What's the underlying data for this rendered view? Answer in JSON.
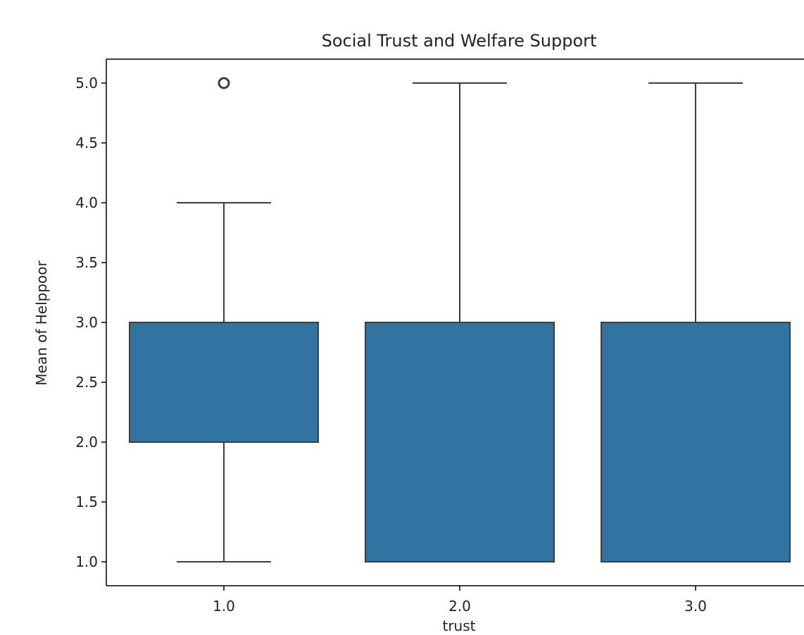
{
  "chart_data": {
    "type": "box",
    "title": "Social Trust and Welfare Support",
    "xlabel": "trust",
    "ylabel": "Mean of Helppoor",
    "categories": [
      "1.0",
      "2.0",
      "3.0"
    ],
    "yticks": [
      "1.0",
      "1.5",
      "2.0",
      "2.5",
      "3.0",
      "3.5",
      "4.0",
      "4.5",
      "5.0"
    ],
    "ylim": [
      0.8,
      5.2
    ],
    "grid": false,
    "legend": "none",
    "box_color": "#3274a1",
    "line_color": "#3d3d3d",
    "boxes": [
      {
        "category": "1.0",
        "whisker_low": 1.0,
        "q1": 2.0,
        "median": 3.0,
        "q3": 3.0,
        "whisker_high": 4.0,
        "outliers": [
          5.0
        ]
      },
      {
        "category": "2.0",
        "whisker_low": 1.0,
        "q1": 1.0,
        "median": 3.0,
        "q3": 3.0,
        "whisker_high": 5.0,
        "outliers": []
      },
      {
        "category": "3.0",
        "whisker_low": 1.0,
        "q1": 1.0,
        "median": 3.0,
        "q3": 3.0,
        "whisker_high": 5.0,
        "outliers": []
      }
    ]
  }
}
